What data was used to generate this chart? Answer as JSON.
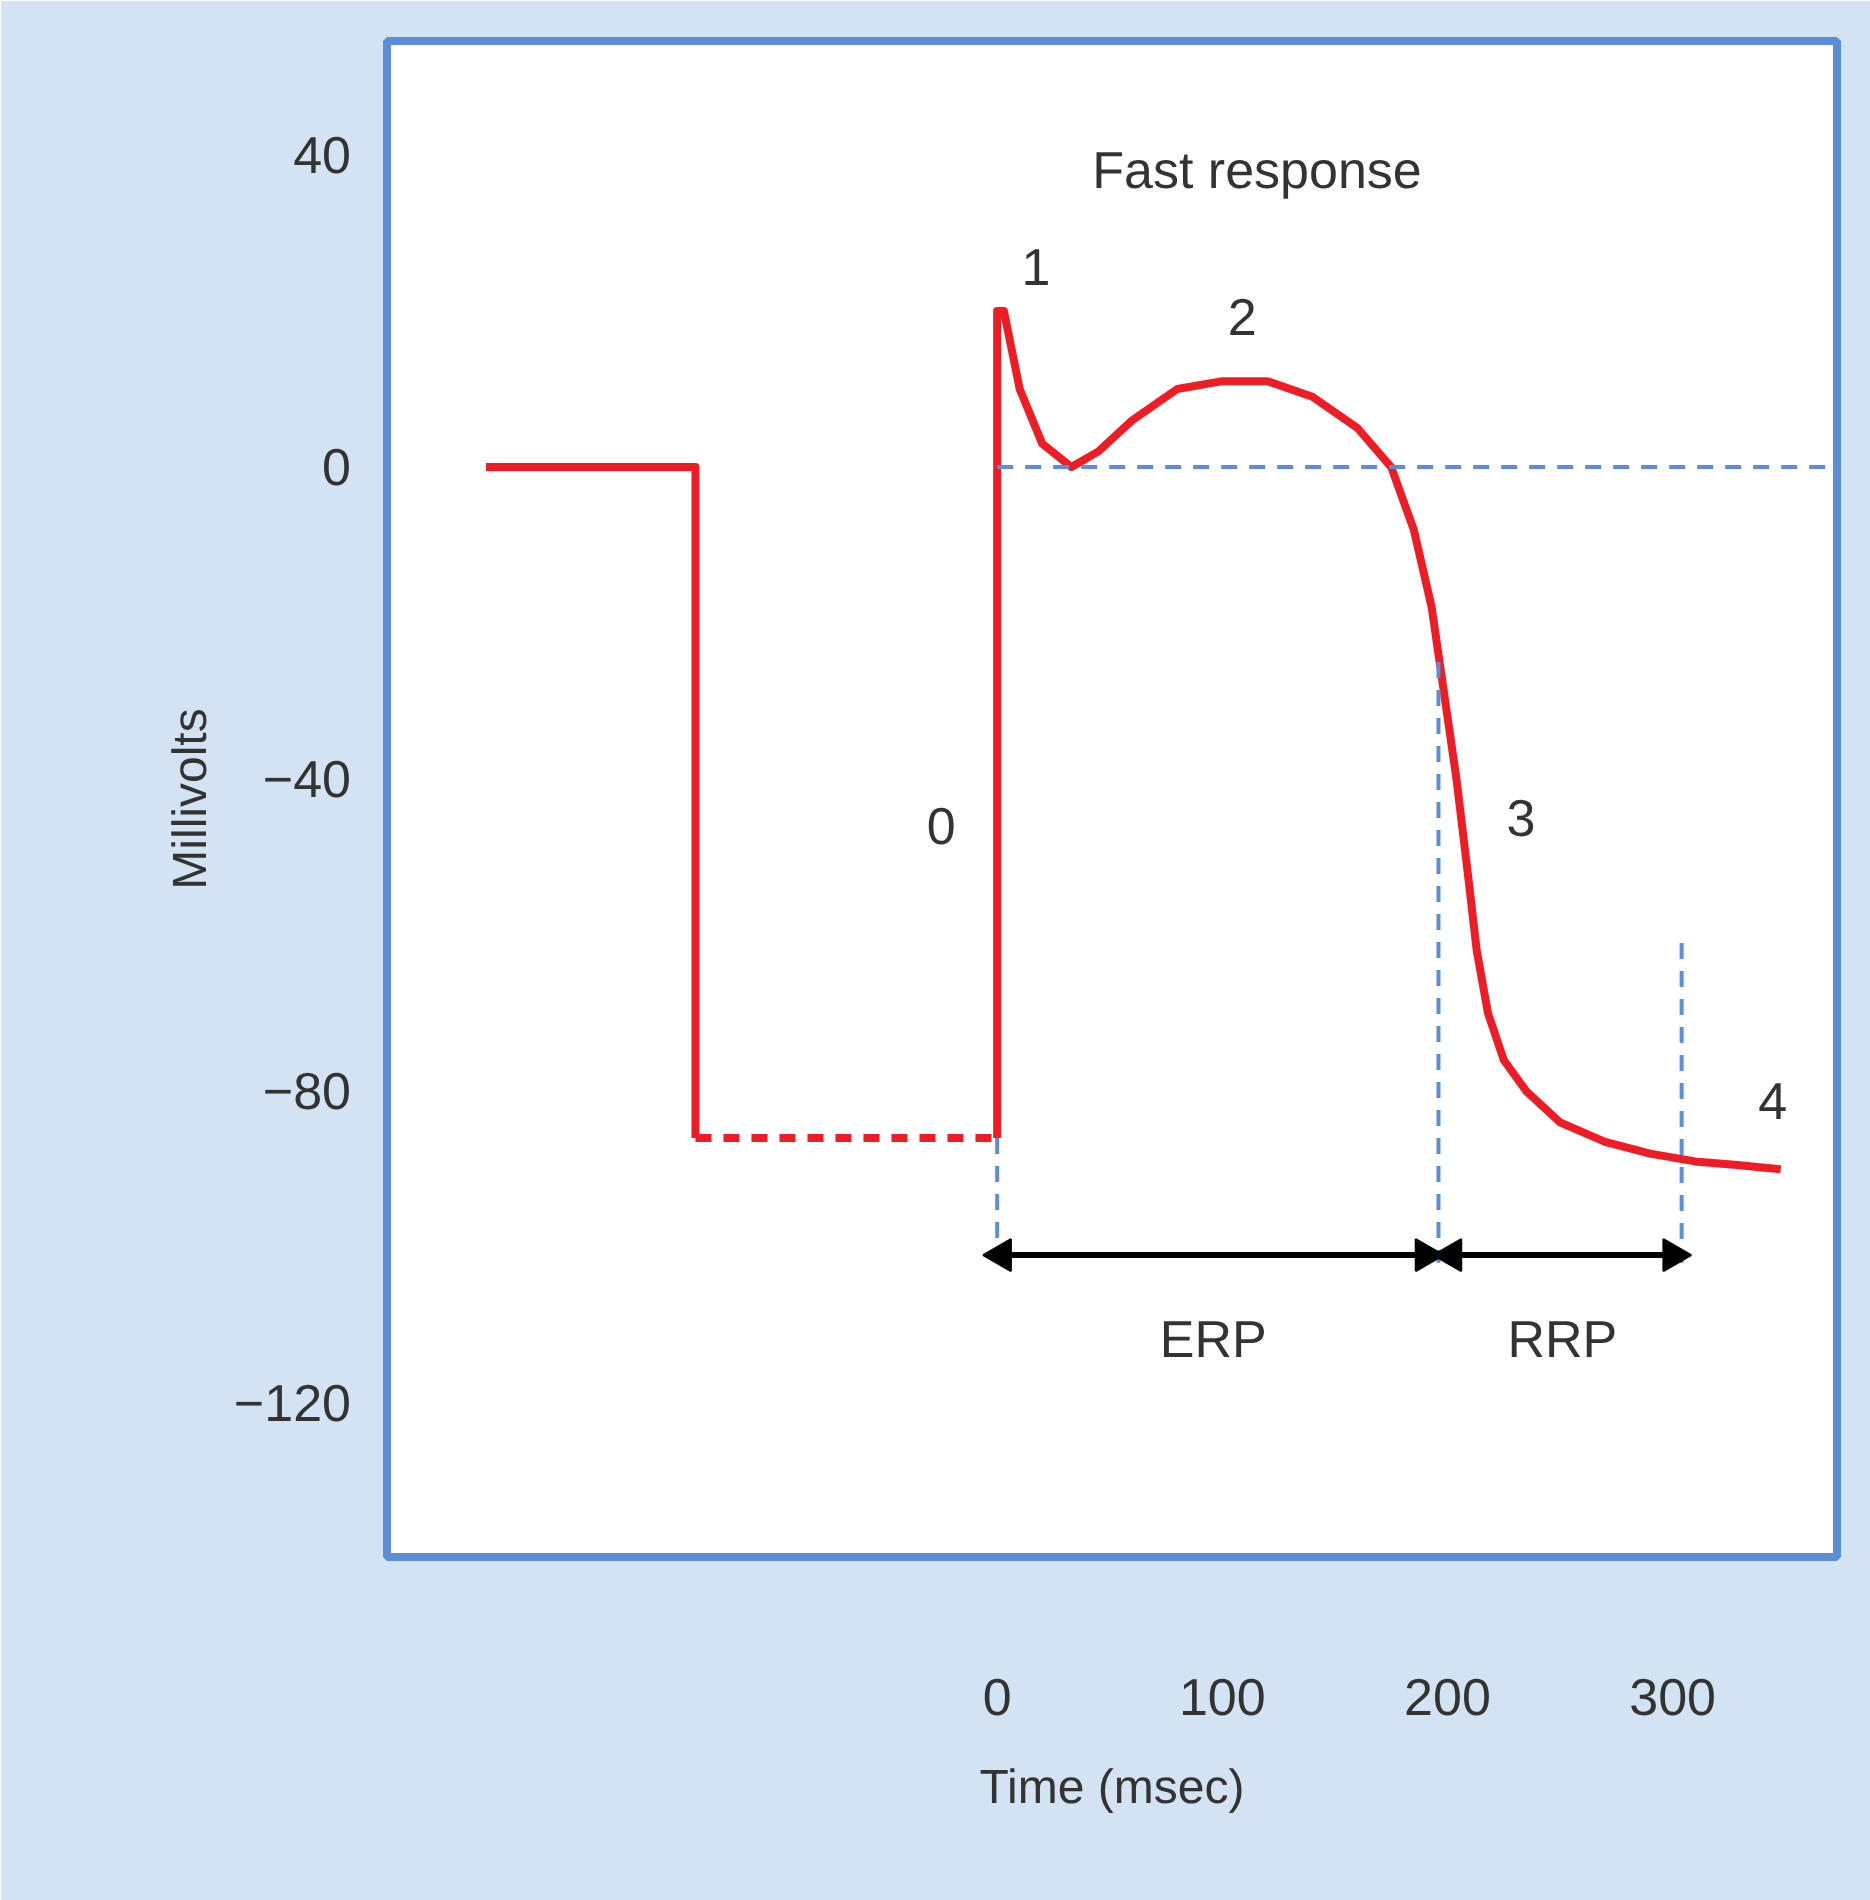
{
  "chart_data": {
    "type": "line",
    "title": "Fast response",
    "xlabel": "Time (msec)",
    "ylabel": "Millivolts",
    "xlim": [
      -271,
      373
    ],
    "ylim": [
      -139.7,
      54.6
    ],
    "xticks": [
      0,
      100,
      200,
      300
    ],
    "yticks": [
      40,
      0,
      {
        "value": -40,
        "label": "−40"
      },
      {
        "value": -80,
        "label": "−80"
      },
      {
        "value": -120,
        "label": "−120"
      }
    ],
    "grid": false,
    "legend": false,
    "marker": "none",
    "series": [
      {
        "color": "#ee1c25",
        "line_style": "solid",
        "x": [
          -227,
          -134,
          -134
        ],
        "values": [
          0,
          0,
          -86
        ]
      },
      {
        "color": "#ee1c25",
        "line_style": "dashed",
        "x": [
          -134,
          0
        ],
        "values": [
          -86,
          -86
        ]
      },
      {
        "color": "#ee1c25",
        "line_style": "solid",
        "x": [
          0,
          0,
          3,
          10,
          20,
          33,
          45,
          60,
          80,
          100,
          120,
          140,
          160,
          175,
          185,
          193,
          198,
          204,
          209,
          213,
          218,
          225,
          235,
          250,
          270,
          290,
          310,
          330,
          348
        ],
        "values": [
          -86,
          20,
          20,
          10,
          3,
          0,
          2,
          6,
          10,
          11,
          11,
          9,
          5,
          0,
          -8,
          -18,
          -28,
          -40,
          -52,
          -62,
          -70,
          -76,
          -80,
          -84,
          -86.5,
          -88,
          -89,
          -89.5,
          -90
        ]
      },
      {
        "color": "#5b8ed6",
        "line_style": "dashed",
        "x": [
          0,
          373
        ],
        "values": [
          0,
          0
        ]
      },
      {
        "color": "#5b8ed6",
        "line_style": "dashed",
        "x": [
          0,
          0
        ],
        "values": [
          -86,
          -102
        ]
      },
      {
        "color": "#5b8ed6",
        "line_style": "dashed",
        "x": [
          196,
          196
        ],
        "values": [
          -25,
          -102
        ]
      },
      {
        "color": "#5b8ed6",
        "line_style": "dashed",
        "x": [
          304,
          304
        ],
        "values": [
          -61,
          -102
        ]
      },
      {
        "name": "ERP",
        "color": "#000000",
        "line_style": "solid",
        "marker": "triangle",
        "x": [
          2,
          190
        ],
        "values": [
          -101,
          -101
        ]
      },
      {
        "name": "RRP",
        "color": "#000000",
        "line_style": "solid",
        "marker": "triangle",
        "x": [
          202,
          300
        ],
        "values": [
          -101,
          -101
        ]
      }
    ],
    "annotations": [
      {
        "text": "0",
        "x": 0,
        "y": -46
      },
      {
        "text": "1",
        "x": 3,
        "y": 20
      },
      {
        "text": "2",
        "x": 100,
        "y": 11
      },
      {
        "text": "3",
        "x": 206,
        "y": -45
      },
      {
        "text": "4",
        "x": 348,
        "y": -90
      }
    ]
  }
}
